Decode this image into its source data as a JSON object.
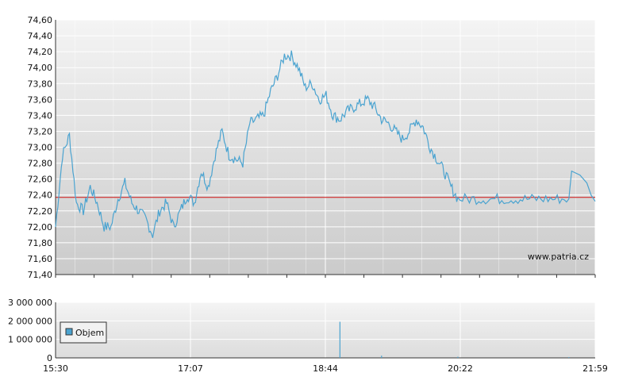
{
  "chart_data": [
    {
      "type": "line",
      "name": "price",
      "ylim": [
        71.4,
        74.6
      ],
      "yticks": [
        "74,60",
        "74,40",
        "74,20",
        "74,00",
        "73,80",
        "73,60",
        "73,40",
        "73,20",
        "73,00",
        "72,80",
        "72,60",
        "72,40",
        "72,20",
        "72,00",
        "71,80",
        "71,60",
        "71,40"
      ],
      "reference_line": 72.37,
      "watermark": "www.patria.cz",
      "colors": {
        "line": "#4aa3d0",
        "reference": "#d01010",
        "bg_top": "#f4f4f4",
        "bg_bottom": "#c9c9c9"
      },
      "x_minutes": [
        0,
        5,
        10,
        15,
        20,
        25,
        30,
        35,
        40,
        45,
        50,
        55,
        60,
        65,
        70,
        75,
        80,
        85,
        90,
        95,
        100,
        105,
        110,
        115,
        120,
        125,
        130,
        135,
        140,
        145,
        150,
        155,
        160,
        165,
        170,
        175,
        180,
        185,
        190,
        195,
        200,
        205,
        210,
        215,
        220,
        225,
        230,
        235,
        240,
        245,
        250,
        255,
        260,
        265,
        270,
        275,
        280,
        285,
        290,
        300,
        310,
        320,
        330,
        340,
        350,
        360,
        370,
        380,
        389
      ],
      "values": [
        72.0,
        72.9,
        73.15,
        72.3,
        72.2,
        72.5,
        72.3,
        72.0,
        72.0,
        72.35,
        72.55,
        72.3,
        72.2,
        72.1,
        71.9,
        72.2,
        72.3,
        72.0,
        72.2,
        72.4,
        72.3,
        72.7,
        72.5,
        72.9,
        73.2,
        72.9,
        72.85,
        72.8,
        73.3,
        73.35,
        73.4,
        73.7,
        73.9,
        74.15,
        74.15,
        74.0,
        73.75,
        73.8,
        73.6,
        73.65,
        73.4,
        73.35,
        73.45,
        73.5,
        73.55,
        73.6,
        73.5,
        73.35,
        73.3,
        73.2,
        73.1,
        73.2,
        73.35,
        73.25,
        73.0,
        72.85,
        72.7,
        72.5,
        72.35,
        72.35,
        72.35,
        72.35,
        72.35,
        72.35,
        72.35,
        72.35,
        72.35,
        72.35,
        72.35
      ]
    },
    {
      "type": "bar",
      "name": "volume",
      "ylim": [
        0,
        3000000
      ],
      "yticks": [
        "3 000 000",
        "2 000 000",
        "1 000 000",
        "0"
      ],
      "legend": "Objem",
      "legend_position": "left",
      "bar_minutes": [
        205,
        235,
        290,
        370
      ],
      "bar_values": [
        1950000,
        120000,
        60000,
        40000
      ]
    }
  ],
  "x_axis": {
    "labels": [
      "15:30",
      "17:07",
      "18:44",
      "20:22",
      "21:59"
    ]
  }
}
